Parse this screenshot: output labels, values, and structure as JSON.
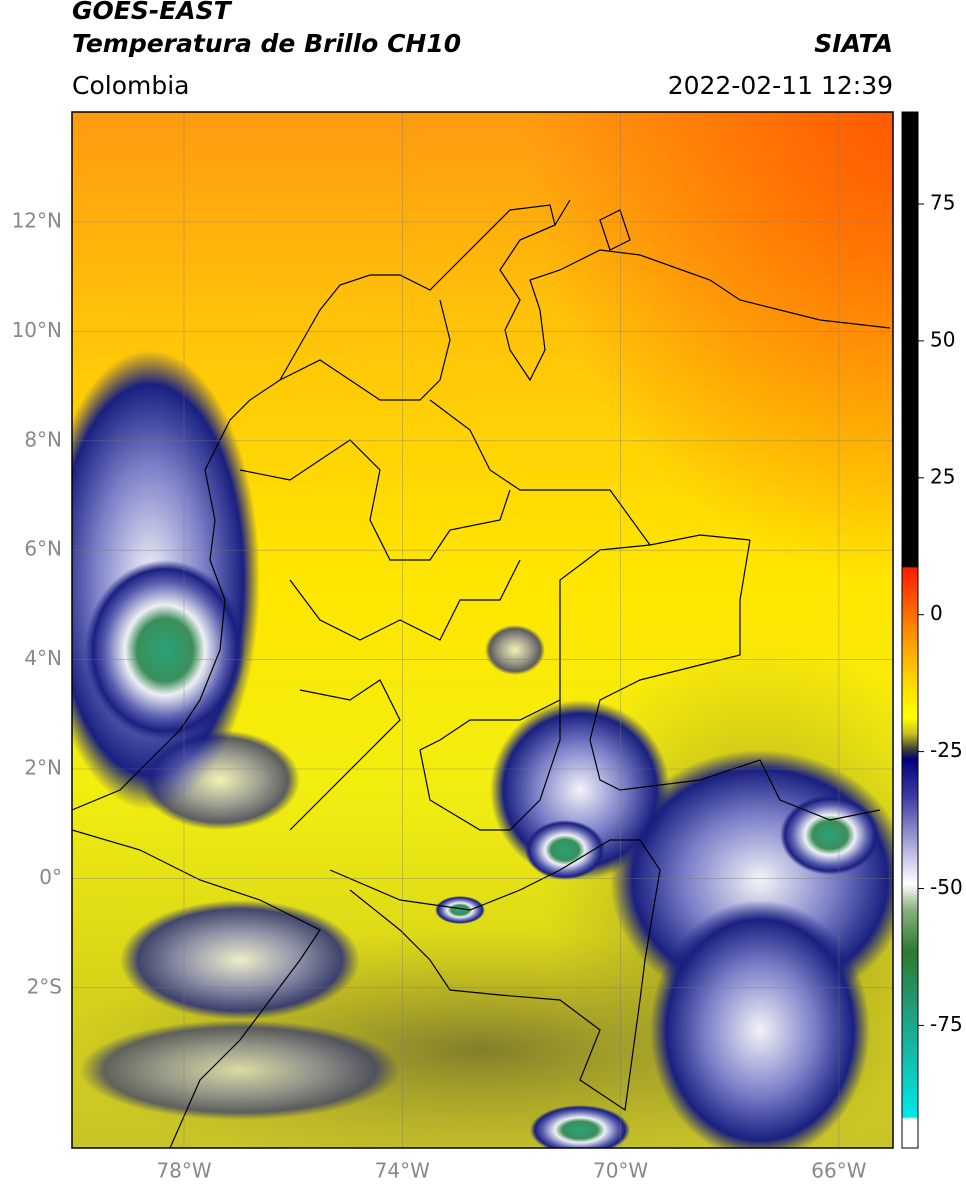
{
  "header": {
    "title": "GOES-EAST",
    "subtitle": "Temperatura de Brillo CH10",
    "source": "SIATA",
    "region": "Colombia",
    "datetime": "2022-02-11 12:39"
  },
  "map": {
    "lat_labels": [
      "12°N",
      "10°N",
      "8°N",
      "6°N",
      "4°N",
      "2°N",
      "0°",
      "2°S"
    ],
    "lon_labels": [
      "78°W",
      "74°W",
      "70°W",
      "66°W"
    ]
  },
  "colorbar": {
    "tick_labels": [
      "75",
      "50",
      "25",
      "0",
      "-25",
      "-50",
      "-75"
    ]
  }
}
